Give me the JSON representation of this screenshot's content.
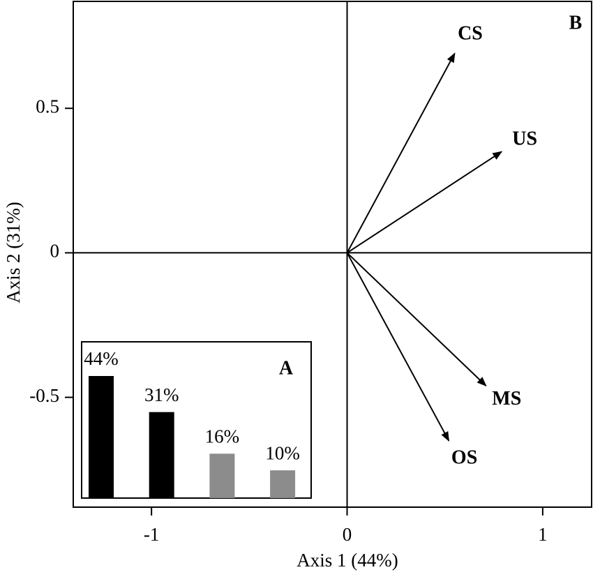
{
  "chart_data": [
    {
      "type": "biplot",
      "label": "B",
      "x_label": "Axis 1 (44%)",
      "y_label": "Axis 2 (31%)",
      "xlim": [
        -1.4,
        1.25
      ],
      "ylim": [
        -0.88,
        0.87
      ],
      "xticks": [
        -1,
        0,
        1
      ],
      "yticks": [
        -0.5,
        0,
        0.5
      ],
      "color": "#000000",
      "series": [
        {
          "name": "CS",
          "x": 0.55,
          "y": 0.69
        },
        {
          "name": "US",
          "x": 0.79,
          "y": 0.35
        },
        {
          "name": "MS",
          "x": 0.71,
          "y": -0.46
        },
        {
          "name": "OS",
          "x": 0.52,
          "y": -0.65
        }
      ]
    },
    {
      "type": "bar",
      "label": "A",
      "values": [
        44,
        31,
        16,
        10
      ],
      "value_labels": [
        "44%",
        "31%",
        "16%",
        "10%"
      ],
      "colors": [
        "#000000",
        "#000000",
        "#8c8c8c",
        "#8c8c8c"
      ]
    }
  ]
}
